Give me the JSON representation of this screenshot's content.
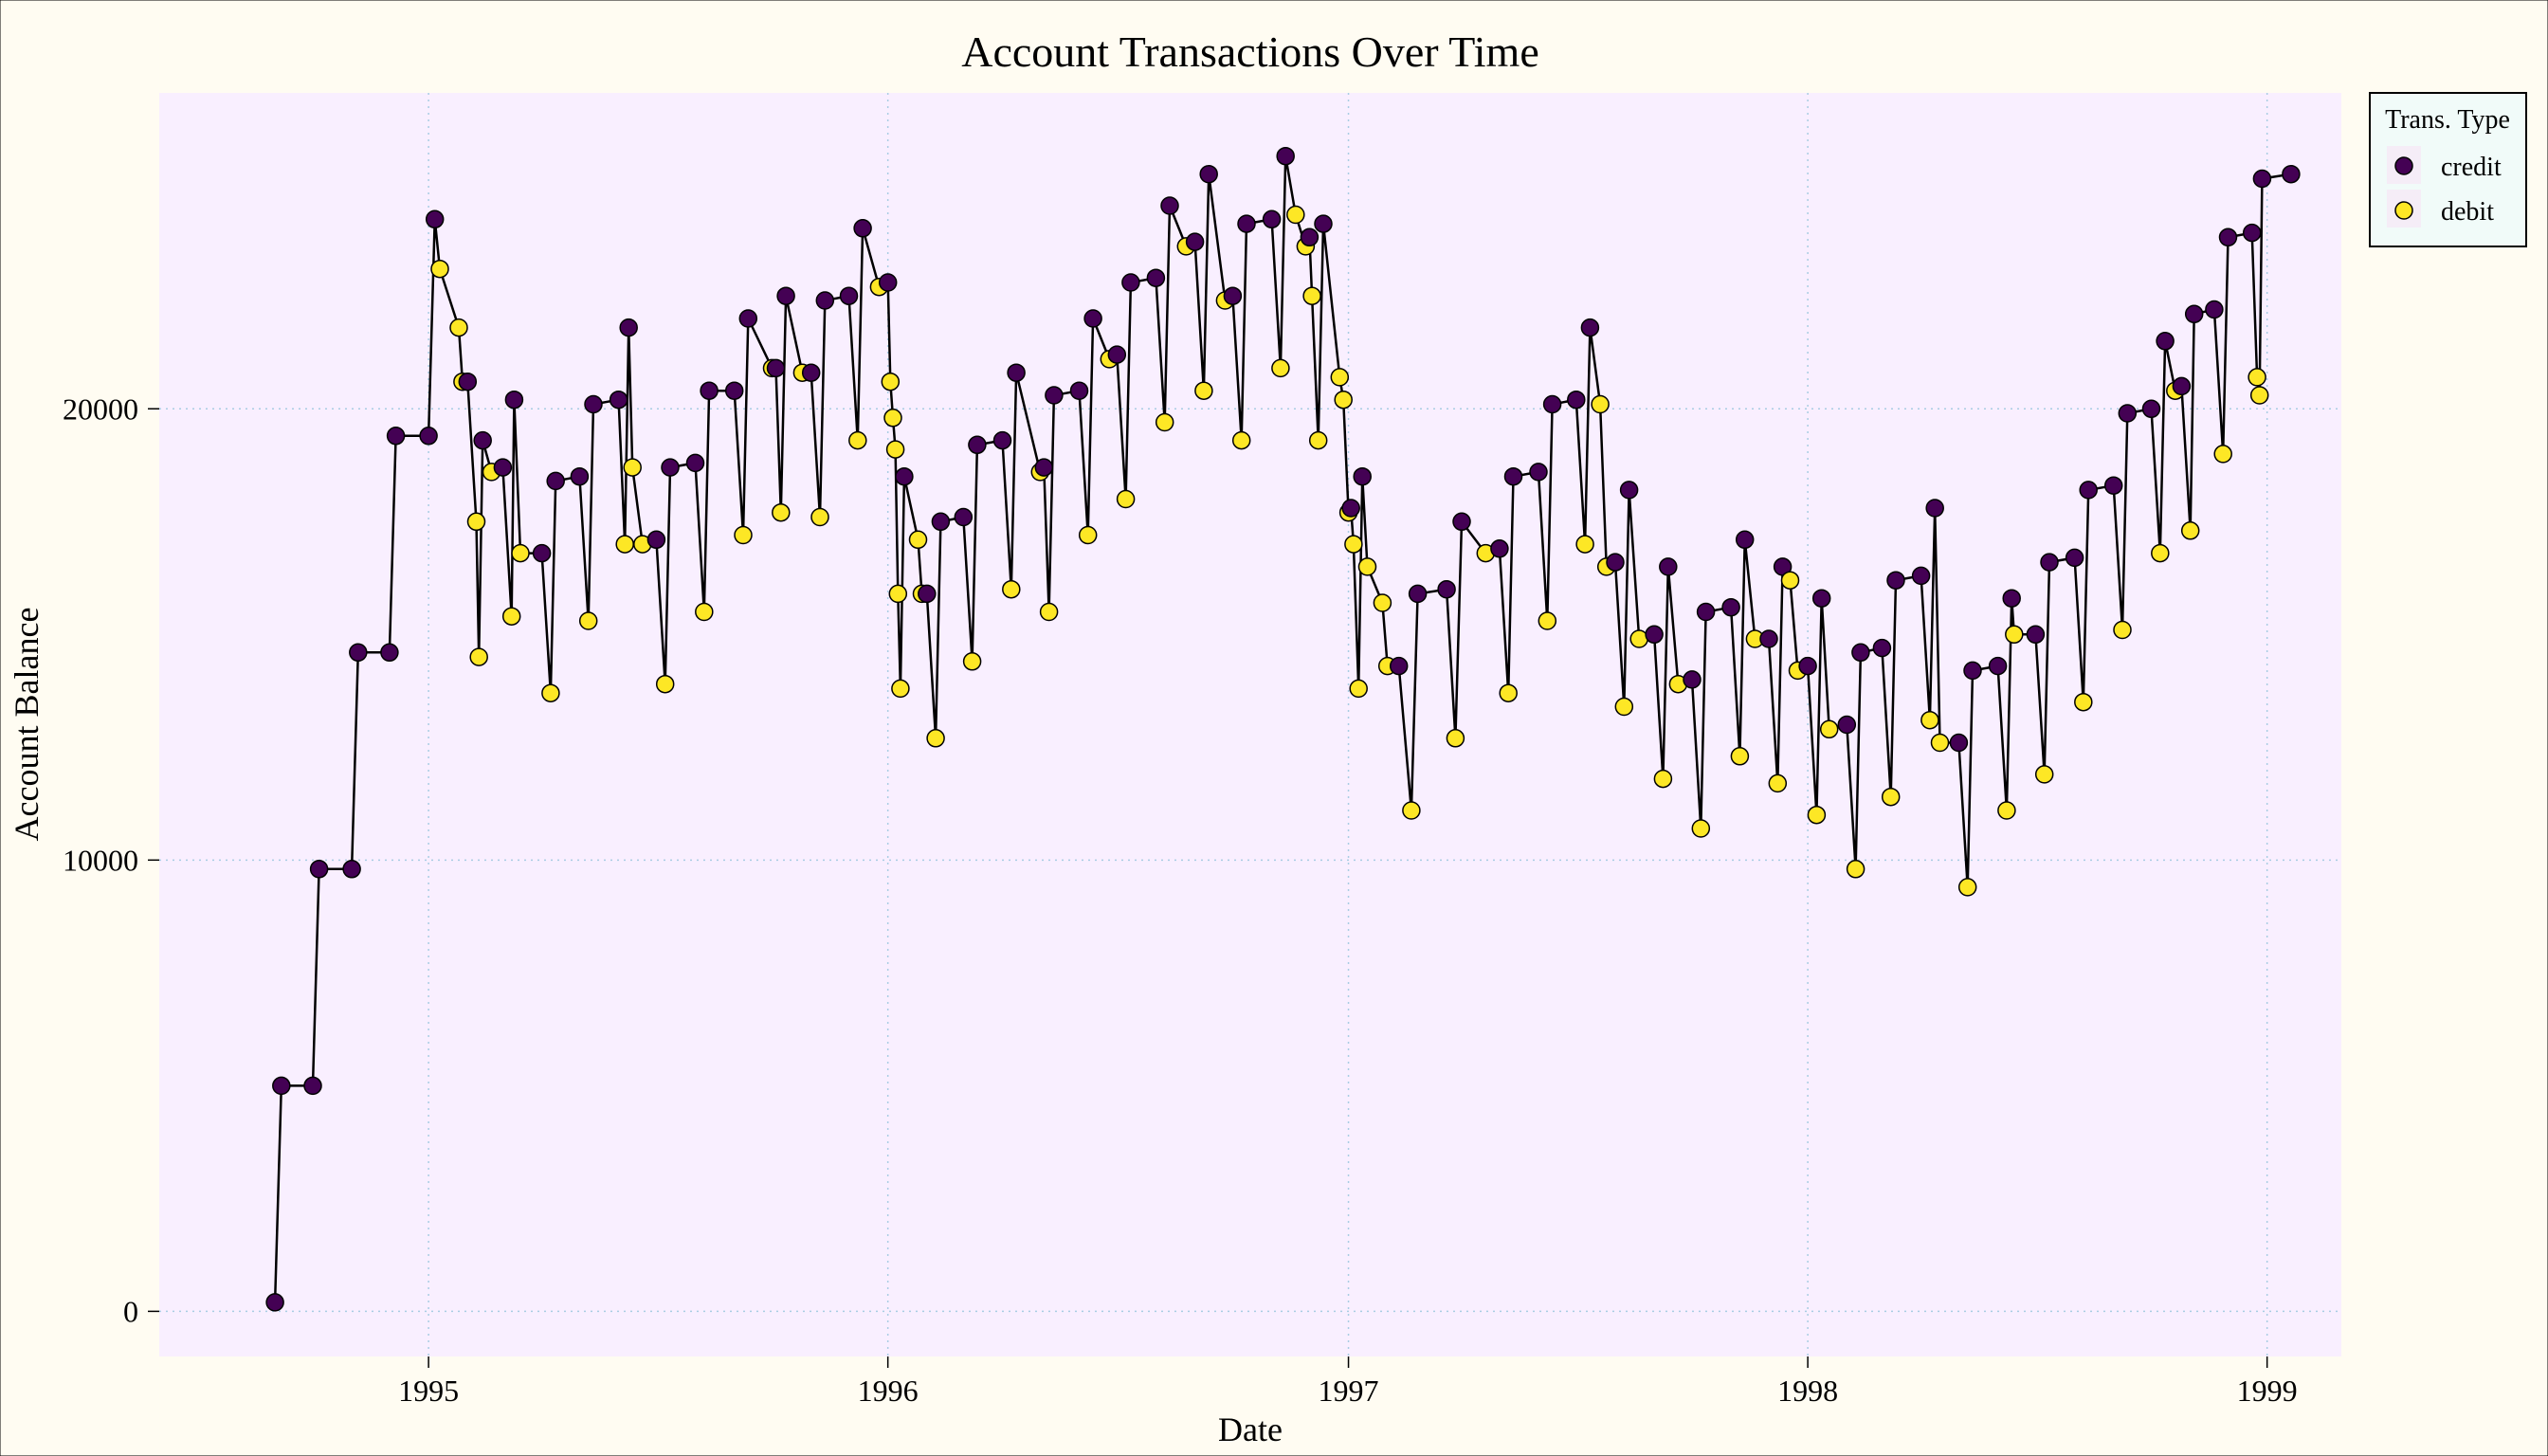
{
  "chart_data": {
    "type": "line",
    "title": "Account Transactions Over Time",
    "xlabel": "Date",
    "ylabel": "Account Balance",
    "xlim": [
      "1994-06-01",
      "1999-03-01"
    ],
    "ylim": [
      -1000,
      27000
    ],
    "x_ticks": [
      "1995-01-01",
      "1996-01-01",
      "1997-01-01",
      "1998-01-01",
      "1999-01-01"
    ],
    "x_tick_labels": [
      "1995",
      "1996",
      "1997",
      "1998",
      "1999"
    ],
    "y_ticks": [
      0,
      10000,
      20000
    ],
    "y_tick_labels": [
      "0",
      "10000",
      "20000"
    ],
    "grid": true,
    "legend": {
      "title": "Trans. Type",
      "position": "top-right"
    },
    "series": [
      {
        "name": "credit",
        "color": "#440154"
      },
      {
        "name": "debit",
        "color": "#fde725"
      }
    ],
    "points": [
      [
        "1994-09-01",
        200,
        "credit"
      ],
      [
        "1994-09-06",
        5000,
        "credit"
      ],
      [
        "1994-10-01",
        5000,
        "credit"
      ],
      [
        "1994-10-06",
        9800,
        "credit"
      ],
      [
        "1994-11-01",
        9800,
        "credit"
      ],
      [
        "1994-11-06",
        14600,
        "credit"
      ],
      [
        "1994-12-01",
        14600,
        "credit"
      ],
      [
        "1994-12-06",
        19400,
        "credit"
      ],
      [
        "1995-01-01",
        19400,
        "credit"
      ],
      [
        "1995-01-06",
        24200,
        "credit"
      ],
      [
        "1995-01-10",
        23100,
        "debit"
      ],
      [
        "1995-01-25",
        21800,
        "debit"
      ],
      [
        "1995-01-28",
        20600,
        "debit"
      ],
      [
        "1995-02-01",
        20600,
        "credit"
      ],
      [
        "1995-02-08",
        17500,
        "debit"
      ],
      [
        "1995-02-10",
        14500,
        "debit"
      ],
      [
        "1995-02-13",
        19300,
        "credit"
      ],
      [
        "1995-02-20",
        18600,
        "debit"
      ],
      [
        "1995-03-01",
        18700,
        "credit"
      ],
      [
        "1995-03-08",
        15400,
        "debit"
      ],
      [
        "1995-03-10",
        20200,
        "credit"
      ],
      [
        "1995-03-15",
        16800,
        "debit"
      ],
      [
        "1995-04-01",
        16800,
        "credit"
      ],
      [
        "1995-04-08",
        13700,
        "debit"
      ],
      [
        "1995-04-12",
        18400,
        "credit"
      ],
      [
        "1995-05-01",
        18500,
        "credit"
      ],
      [
        "1995-05-08",
        15300,
        "debit"
      ],
      [
        "1995-05-12",
        20100,
        "credit"
      ],
      [
        "1995-06-01",
        20200,
        "credit"
      ],
      [
        "1995-06-06",
        17000,
        "debit"
      ],
      [
        "1995-06-09",
        21800,
        "credit"
      ],
      [
        "1995-06-12",
        18700,
        "debit"
      ],
      [
        "1995-06-20",
        17000,
        "debit"
      ],
      [
        "1995-07-01",
        17100,
        "credit"
      ],
      [
        "1995-07-08",
        13900,
        "debit"
      ],
      [
        "1995-07-12",
        18700,
        "credit"
      ],
      [
        "1995-08-01",
        18800,
        "credit"
      ],
      [
        "1995-08-08",
        15500,
        "debit"
      ],
      [
        "1995-08-12",
        20400,
        "credit"
      ],
      [
        "1995-09-01",
        20400,
        "credit"
      ],
      [
        "1995-09-08",
        17200,
        "debit"
      ],
      [
        "1995-09-12",
        22000,
        "credit"
      ],
      [
        "1995-10-01",
        20900,
        "debit"
      ],
      [
        "1995-10-04",
        20900,
        "credit"
      ],
      [
        "1995-10-08",
        17700,
        "debit"
      ],
      [
        "1995-10-12",
        22500,
        "credit"
      ],
      [
        "1995-10-25",
        20800,
        "debit"
      ],
      [
        "1995-11-01",
        20800,
        "credit"
      ],
      [
        "1995-11-08",
        17600,
        "debit"
      ],
      [
        "1995-11-12",
        22400,
        "credit"
      ],
      [
        "1995-12-01",
        22500,
        "credit"
      ],
      [
        "1995-12-08",
        19300,
        "debit"
      ],
      [
        "1995-12-12",
        24000,
        "credit"
      ],
      [
        "1995-12-25",
        22700,
        "debit"
      ],
      [
        "1996-01-01",
        22800,
        "credit"
      ],
      [
        "1996-01-03",
        20600,
        "debit"
      ],
      [
        "1996-01-05",
        19800,
        "debit"
      ],
      [
        "1996-01-07",
        19100,
        "debit"
      ],
      [
        "1996-01-09",
        15900,
        "debit"
      ],
      [
        "1996-01-11",
        13800,
        "debit"
      ],
      [
        "1996-01-14",
        18500,
        "credit"
      ],
      [
        "1996-01-25",
        17100,
        "debit"
      ],
      [
        "1996-01-28",
        15900,
        "debit"
      ],
      [
        "1996-02-01",
        15900,
        "credit"
      ],
      [
        "1996-02-08",
        12700,
        "debit"
      ],
      [
        "1996-02-12",
        17500,
        "credit"
      ],
      [
        "1996-03-01",
        17600,
        "credit"
      ],
      [
        "1996-03-08",
        14400,
        "debit"
      ],
      [
        "1996-03-12",
        19200,
        "credit"
      ],
      [
        "1996-04-01",
        19300,
        "credit"
      ],
      [
        "1996-04-08",
        16000,
        "debit"
      ],
      [
        "1996-04-12",
        20800,
        "credit"
      ],
      [
        "1996-05-01",
        18600,
        "debit"
      ],
      [
        "1996-05-04",
        18700,
        "credit"
      ],
      [
        "1996-05-08",
        15500,
        "debit"
      ],
      [
        "1996-05-12",
        20300,
        "credit"
      ],
      [
        "1996-06-01",
        20400,
        "credit"
      ],
      [
        "1996-06-08",
        17200,
        "debit"
      ],
      [
        "1996-06-12",
        22000,
        "credit"
      ],
      [
        "1996-06-25",
        21100,
        "debit"
      ],
      [
        "1996-07-01",
        21200,
        "credit"
      ],
      [
        "1996-07-08",
        18000,
        "debit"
      ],
      [
        "1996-07-12",
        22800,
        "credit"
      ],
      [
        "1996-08-01",
        22900,
        "credit"
      ],
      [
        "1996-08-08",
        19700,
        "debit"
      ],
      [
        "1996-08-12",
        24500,
        "credit"
      ],
      [
        "1996-08-25",
        23600,
        "debit"
      ],
      [
        "1996-09-01",
        23700,
        "credit"
      ],
      [
        "1996-09-08",
        20400,
        "debit"
      ],
      [
        "1996-09-12",
        25200,
        "credit"
      ],
      [
        "1996-09-25",
        22400,
        "debit"
      ],
      [
        "1996-10-01",
        22500,
        "credit"
      ],
      [
        "1996-10-08",
        19300,
        "debit"
      ],
      [
        "1996-10-12",
        24100,
        "credit"
      ],
      [
        "1996-11-01",
        24200,
        "credit"
      ],
      [
        "1996-11-08",
        20900,
        "debit"
      ],
      [
        "1996-11-12",
        25600,
        "credit"
      ],
      [
        "1996-11-20",
        24300,
        "debit"
      ],
      [
        "1996-11-28",
        23600,
        "debit"
      ],
      [
        "1996-12-01",
        23800,
        "credit"
      ],
      [
        "1996-12-03",
        22500,
        "debit"
      ],
      [
        "1996-12-08",
        19300,
        "debit"
      ],
      [
        "1996-12-12",
        24100,
        "credit"
      ],
      [
        "1996-12-25",
        20700,
        "debit"
      ],
      [
        "1996-12-28",
        20200,
        "debit"
      ],
      [
        "1997-01-01",
        17700,
        "debit"
      ],
      [
        "1997-01-03",
        17800,
        "credit"
      ],
      [
        "1997-01-05",
        17000,
        "debit"
      ],
      [
        "1997-01-09",
        13800,
        "debit"
      ],
      [
        "1997-01-12",
        18500,
        "credit"
      ],
      [
        "1997-01-16",
        16500,
        "debit"
      ],
      [
        "1997-01-28",
        15700,
        "debit"
      ],
      [
        "1997-02-01",
        14300,
        "debit"
      ],
      [
        "1997-02-10",
        14300,
        "credit"
      ],
      [
        "1997-02-20",
        11100,
        "debit"
      ],
      [
        "1997-02-25",
        15900,
        "credit"
      ],
      [
        "1997-03-20",
        16000,
        "credit"
      ],
      [
        "1997-03-27",
        12700,
        "debit"
      ],
      [
        "1997-04-01",
        17500,
        "credit"
      ],
      [
        "1997-04-20",
        16800,
        "debit"
      ],
      [
        "1997-05-01",
        16900,
        "credit"
      ],
      [
        "1997-05-08",
        13700,
        "debit"
      ],
      [
        "1997-05-12",
        18500,
        "credit"
      ],
      [
        "1997-06-01",
        18600,
        "credit"
      ],
      [
        "1997-06-08",
        15300,
        "debit"
      ],
      [
        "1997-06-12",
        20100,
        "credit"
      ],
      [
        "1997-07-01",
        20200,
        "credit"
      ],
      [
        "1997-07-08",
        17000,
        "debit"
      ],
      [
        "1997-07-12",
        21800,
        "credit"
      ],
      [
        "1997-07-20",
        20100,
        "debit"
      ],
      [
        "1997-07-25",
        16500,
        "debit"
      ],
      [
        "1997-08-01",
        16600,
        "credit"
      ],
      [
        "1997-08-08",
        13400,
        "debit"
      ],
      [
        "1997-08-12",
        18200,
        "credit"
      ],
      [
        "1997-08-20",
        14900,
        "debit"
      ],
      [
        "1997-09-01",
        15000,
        "credit"
      ],
      [
        "1997-09-08",
        11800,
        "debit"
      ],
      [
        "1997-09-12",
        16500,
        "credit"
      ],
      [
        "1997-09-20",
        13900,
        "debit"
      ],
      [
        "1997-10-01",
        14000,
        "credit"
      ],
      [
        "1997-10-08",
        10700,
        "debit"
      ],
      [
        "1997-10-12",
        15500,
        "credit"
      ],
      [
        "1997-11-01",
        15600,
        "credit"
      ],
      [
        "1997-11-08",
        12300,
        "debit"
      ],
      [
        "1997-11-12",
        17100,
        "credit"
      ],
      [
        "1997-11-20",
        14900,
        "debit"
      ],
      [
        "1997-12-01",
        14900,
        "credit"
      ],
      [
        "1997-12-08",
        11700,
        "debit"
      ],
      [
        "1997-12-12",
        16500,
        "credit"
      ],
      [
        "1997-12-18",
        16200,
        "debit"
      ],
      [
        "1997-12-24",
        14200,
        "debit"
      ],
      [
        "1998-01-01",
        14300,
        "credit"
      ],
      [
        "1998-01-08",
        11000,
        "debit"
      ],
      [
        "1998-01-12",
        15800,
        "credit"
      ],
      [
        "1998-01-18",
        12900,
        "debit"
      ],
      [
        "1998-02-01",
        13000,
        "credit"
      ],
      [
        "1998-02-08",
        9800,
        "debit"
      ],
      [
        "1998-02-12",
        14600,
        "credit"
      ],
      [
        "1998-03-01",
        14700,
        "credit"
      ],
      [
        "1998-03-08",
        11400,
        "debit"
      ],
      [
        "1998-03-12",
        16200,
        "credit"
      ],
      [
        "1998-04-01",
        16300,
        "credit"
      ],
      [
        "1998-04-08",
        13100,
        "debit"
      ],
      [
        "1998-04-12",
        17800,
        "credit"
      ],
      [
        "1998-04-16",
        12600,
        "debit"
      ],
      [
        "1998-05-01",
        12600,
        "credit"
      ],
      [
        "1998-05-08",
        9400,
        "debit"
      ],
      [
        "1998-05-12",
        14200,
        "credit"
      ],
      [
        "1998-06-01",
        14300,
        "credit"
      ],
      [
        "1998-06-08",
        11100,
        "debit"
      ],
      [
        "1998-06-12",
        15800,
        "credit"
      ],
      [
        "1998-06-14",
        15000,
        "debit"
      ],
      [
        "1998-07-01",
        15000,
        "credit"
      ],
      [
        "1998-07-08",
        11900,
        "debit"
      ],
      [
        "1998-07-12",
        16600,
        "credit"
      ],
      [
        "1998-08-01",
        16700,
        "credit"
      ],
      [
        "1998-08-08",
        13500,
        "debit"
      ],
      [
        "1998-08-12",
        18200,
        "credit"
      ],
      [
        "1998-09-01",
        18300,
        "credit"
      ],
      [
        "1998-09-08",
        15100,
        "debit"
      ],
      [
        "1998-09-12",
        19900,
        "credit"
      ],
      [
        "1998-10-01",
        20000,
        "credit"
      ],
      [
        "1998-10-08",
        16800,
        "debit"
      ],
      [
        "1998-10-12",
        21500,
        "credit"
      ],
      [
        "1998-10-20",
        20400,
        "debit"
      ],
      [
        "1998-10-25",
        20500,
        "credit"
      ],
      [
        "1998-11-01",
        17300,
        "debit"
      ],
      [
        "1998-11-04",
        22100,
        "credit"
      ],
      [
        "1998-11-20",
        22200,
        "credit"
      ],
      [
        "1998-11-27",
        19000,
        "debit"
      ],
      [
        "1998-12-01",
        23800,
        "credit"
      ],
      [
        "1998-12-20",
        23900,
        "credit"
      ],
      [
        "1998-12-24",
        20700,
        "debit"
      ],
      [
        "1998-12-26",
        20300,
        "debit"
      ],
      [
        "1998-12-28",
        25100,
        "credit"
      ],
      [
        "1999-01-20",
        25200,
        "credit"
      ]
    ]
  }
}
